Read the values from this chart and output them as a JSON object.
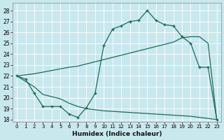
{
  "bg_color": "#c8e8ee",
  "grid_color": "#aad4dc",
  "line_color": "#1a6b5a",
  "xlabel": "Humidex (Indice chaleur)",
  "xlim": [
    -0.5,
    23.5
  ],
  "ylim": [
    17.8,
    28.7
  ],
  "yticks": [
    18,
    19,
    20,
    21,
    22,
    23,
    24,
    25,
    26,
    27,
    28
  ],
  "xticks": [
    0,
    1,
    2,
    3,
    4,
    5,
    6,
    7,
    8,
    9,
    10,
    11,
    12,
    13,
    14,
    15,
    16,
    17,
    18,
    19,
    20,
    21,
    22,
    23
  ],
  "curve_x": [
    0,
    1,
    2,
    3,
    4,
    5,
    6,
    7,
    8,
    9,
    10,
    11,
    12,
    13,
    14,
    15,
    16,
    17,
    18,
    19,
    20,
    21,
    22,
    23
  ],
  "curve_y": [
    22.0,
    21.7,
    20.4,
    19.2,
    19.2,
    19.2,
    18.5,
    18.2,
    19.1,
    20.4,
    24.8,
    26.3,
    26.6,
    27.0,
    27.1,
    28.0,
    27.1,
    26.7,
    26.6,
    25.6,
    25.0,
    22.8,
    22.8,
    18.0
  ],
  "upper_x": [
    0,
    1,
    2,
    3,
    4,
    5,
    6,
    7,
    8,
    9,
    10,
    11,
    12,
    13,
    14,
    15,
    16,
    17,
    18,
    19,
    20,
    21,
    22,
    23
  ],
  "upper_y": [
    22.0,
    22.1,
    22.2,
    22.35,
    22.5,
    22.65,
    22.8,
    22.9,
    23.1,
    23.3,
    23.5,
    23.7,
    23.9,
    24.1,
    24.3,
    24.5,
    24.7,
    24.9,
    25.1,
    25.5,
    25.6,
    25.6,
    25.0,
    18.0
  ],
  "lower_x": [
    0,
    1,
    2,
    3,
    4,
    5,
    6,
    7,
    8,
    9,
    10,
    11,
    12,
    13,
    14,
    15,
    16,
    17,
    18,
    19,
    20,
    21,
    22,
    23
  ],
  "lower_y": [
    22.0,
    21.5,
    21.0,
    20.3,
    20.1,
    19.9,
    19.5,
    19.2,
    19.0,
    18.9,
    18.8,
    18.75,
    18.7,
    18.65,
    18.6,
    18.55,
    18.5,
    18.45,
    18.4,
    18.35,
    18.3,
    18.2,
    18.1,
    18.0
  ]
}
